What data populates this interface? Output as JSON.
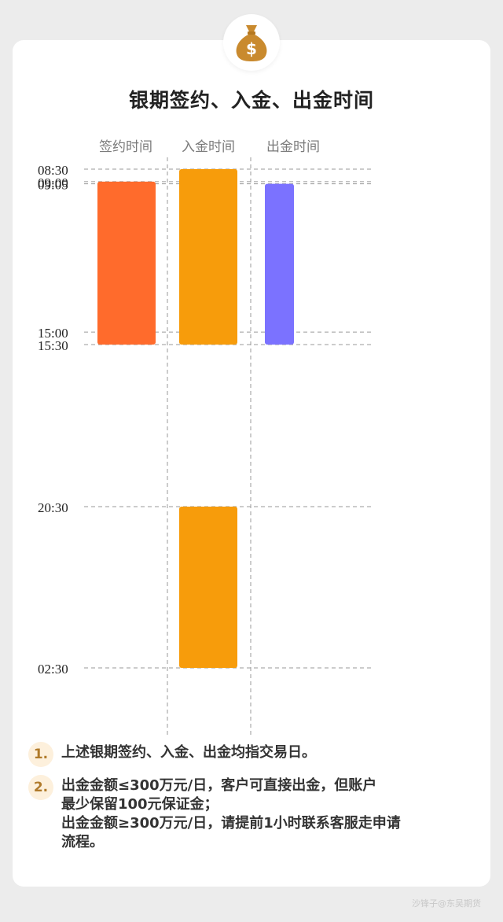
{
  "title": "银期签约、入金、出金时间",
  "chart_data": {
    "type": "bar",
    "orientation": "vertical-ranges",
    "categories": [
      "签约时间",
      "入金时间",
      "出金时间"
    ],
    "time_ticks": [
      "08:30",
      "09:00",
      "09:05",
      "15:00",
      "15:30",
      "20:30",
      "02:30"
    ],
    "ranges": [
      {
        "category": "签约时间",
        "from": "09:00",
        "to": "15:30",
        "color": "#ff6b2c"
      },
      {
        "category": "入金时间",
        "from": "08:30",
        "to": "15:30",
        "color": "#f79c0b"
      },
      {
        "category": "出金时间",
        "from": "09:05",
        "to": "15:30",
        "color": "#7b72ff"
      },
      {
        "category": "入金时间",
        "from": "20:30",
        "to": "02:30",
        "color": "#f79c0b"
      }
    ],
    "grid": true
  },
  "notes": [
    {
      "num": "1.",
      "lines": [
        "上述银期签约、入金、出金均指交易日。"
      ]
    },
    {
      "num": "2.",
      "lines": [
        "出金金额≤300万元/日，客户可直接出金，但账户",
        "最少保留100元保证金；",
        "出金金额≥300万元/日，请提前1小时联系客服走申请",
        "流程。"
      ]
    }
  ],
  "watermark": "沙锋子@东吴期货",
  "icon": "money-bag-icon"
}
